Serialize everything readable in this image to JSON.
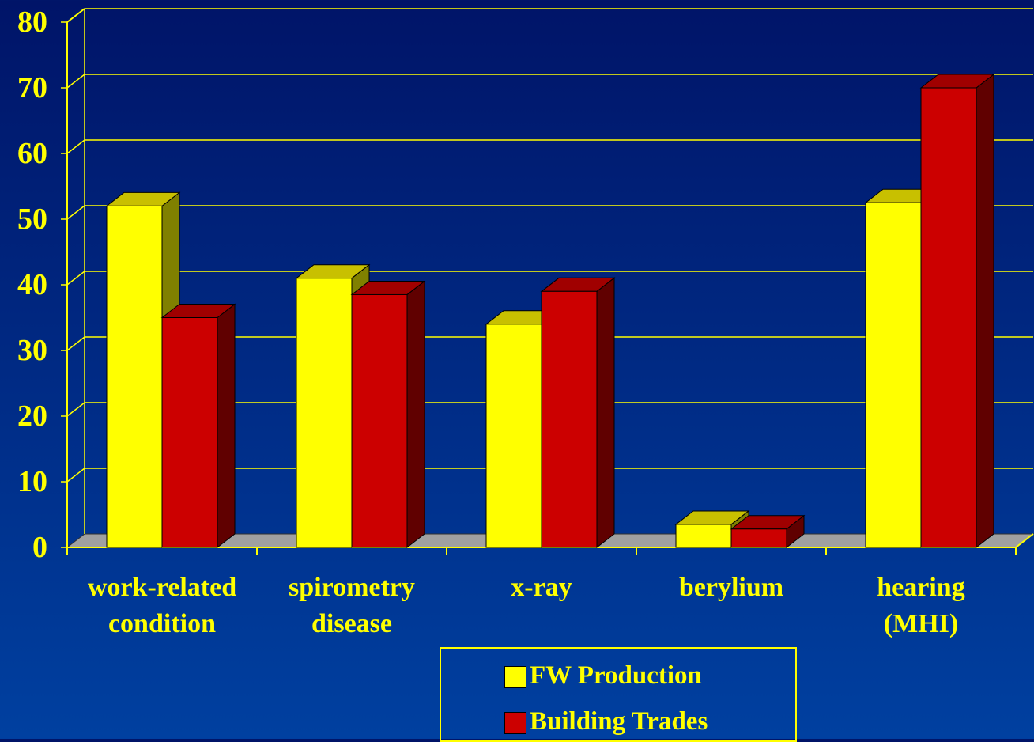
{
  "chart_data": {
    "type": "bar3d",
    "categories": [
      "work-related\ncondition",
      "spirometry\ndisease",
      "x-ray",
      "berylium",
      "hearing\n(MHI)"
    ],
    "series": [
      {
        "name": "FW Production",
        "color": "#ffff00",
        "values": [
          52,
          41,
          34,
          3.5,
          52.5
        ]
      },
      {
        "name": "Building Trades",
        "color": "#cc0000",
        "values": [
          35,
          38.5,
          39,
          2.8,
          70
        ]
      }
    ],
    "ylim": [
      0,
      80
    ],
    "yticks": [
      0,
      10,
      20,
      30,
      40,
      50,
      60,
      70,
      80
    ],
    "grid": true,
    "legend": "bottom"
  }
}
